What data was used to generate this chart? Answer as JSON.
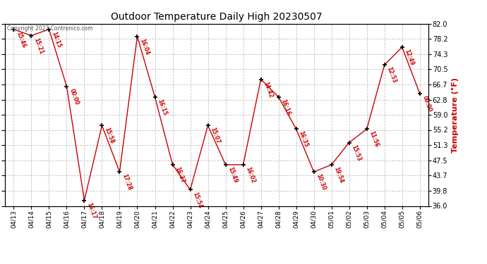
{
  "title": "Outdoor Temperature Daily High 20230507",
  "ylabel": "Temperature (°F)",
  "copyright": "Copyright 2023 Contronico.com",
  "background_color": "#ffffff",
  "grid_color": "#bbbbbb",
  "line_color": "#cc0000",
  "marker_color": "#000000",
  "text_color": "#cc0000",
  "dates": [
    "04/13",
    "04/14",
    "04/15",
    "04/16",
    "04/17",
    "04/18",
    "04/19",
    "04/20",
    "04/21",
    "04/22",
    "04/23",
    "04/24",
    "04/25",
    "04/26",
    "04/27",
    "04/28",
    "04/29",
    "04/30",
    "05/01",
    "05/02",
    "05/03",
    "05/04",
    "05/05",
    "05/06"
  ],
  "temps": [
    80.6,
    79.0,
    80.6,
    66.2,
    37.4,
    56.3,
    44.6,
    78.8,
    63.5,
    46.4,
    40.1,
    56.3,
    46.4,
    46.4,
    68.0,
    63.5,
    55.4,
    44.6,
    46.4,
    52.0,
    55.4,
    71.6,
    76.1,
    64.4
  ],
  "times": [
    "15:46",
    "15:21",
    "14:15",
    "00:00",
    "16:17",
    "15:58",
    "17:28",
    "16:04",
    "16:15",
    "16:37",
    "15:54",
    "15:07",
    "15:49",
    "16:02",
    "14:42",
    "16:16",
    "16:35",
    "10:30",
    "19:54",
    "15:53",
    "11:56",
    "12:53",
    "12:49",
    "00:00"
  ],
  "ylim": [
    36.0,
    82.0
  ],
  "yticks": [
    36.0,
    39.8,
    43.7,
    47.5,
    51.3,
    55.2,
    59.0,
    62.8,
    66.7,
    70.5,
    74.3,
    78.2,
    82.0
  ]
}
